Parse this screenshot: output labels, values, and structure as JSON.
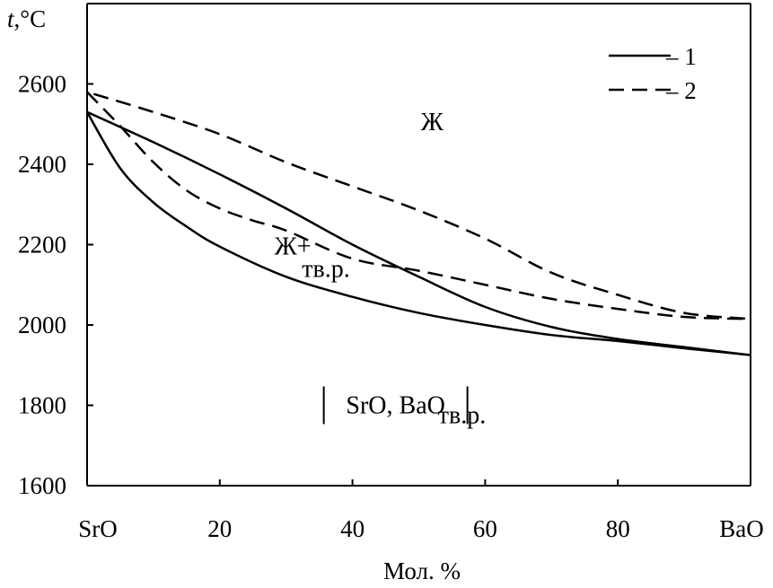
{
  "chart_data": {
    "type": "line",
    "title": "",
    "xlabel": "Мол. %",
    "ylabel_italic": "t",
    "ylabel_rest": ",°C",
    "xlim": [
      0,
      100
    ],
    "ylim": [
      1600,
      2800
    ],
    "x_ticks": [
      {
        "value": 0,
        "label": "SrO"
      },
      {
        "value": 20,
        "label": "20"
      },
      {
        "value": 40,
        "label": "40"
      },
      {
        "value": 60,
        "label": "60"
      },
      {
        "value": 80,
        "label": "80"
      },
      {
        "value": 100,
        "label": "BaO"
      }
    ],
    "y_ticks": [
      {
        "value": 1600,
        "label": "1600"
      },
      {
        "value": 1800,
        "label": "1800"
      },
      {
        "value": 2000,
        "label": "2000"
      },
      {
        "value": 2200,
        "label": "2200"
      },
      {
        "value": 2400,
        "label": "2400"
      },
      {
        "value": 2600,
        "label": "2600"
      }
    ],
    "grid": false,
    "legend_position": "top-right",
    "legend": [
      {
        "label": "– 1",
        "dash": "solid"
      },
      {
        "label": "– 2",
        "dash": "dashed"
      }
    ],
    "series": [
      {
        "legend_index": 0,
        "part": "liquidus",
        "x": [
          0,
          10,
          20,
          30,
          40,
          50,
          60,
          70,
          80,
          90,
          100
        ],
        "y": [
          2530,
          2455,
          2375,
          2290,
          2200,
          2120,
          2045,
          1995,
          1965,
          1945,
          1925
        ]
      },
      {
        "legend_index": 0,
        "part": "solidus",
        "x": [
          0,
          5,
          10,
          15,
          20,
          30,
          40,
          50,
          60,
          70,
          80,
          90,
          100
        ],
        "y": [
          2530,
          2390,
          2305,
          2245,
          2195,
          2120,
          2070,
          2030,
          2000,
          1975,
          1960,
          1942,
          1925
        ]
      },
      {
        "legend_index": 1,
        "part": "liquidus",
        "x": [
          1,
          10,
          20,
          30,
          40,
          50,
          60,
          70,
          80,
          90,
          100
        ],
        "y": [
          2575,
          2530,
          2475,
          2405,
          2345,
          2285,
          2215,
          2130,
          2075,
          2030,
          2015
        ]
      },
      {
        "legend_index": 1,
        "part": "solidus",
        "x": [
          0,
          5,
          10,
          15,
          20,
          25,
          30,
          40,
          50,
          60,
          70,
          80,
          90,
          100
        ],
        "y": [
          2580,
          2495,
          2405,
          2335,
          2290,
          2260,
          2235,
          2165,
          2135,
          2100,
          2065,
          2040,
          2020,
          2015
        ]
      }
    ],
    "annotations": [
      {
        "name": "liquid-region-label",
        "text": "Ж",
        "x": 52,
        "y": 2485
      },
      {
        "name": "liquid-solid-region-label",
        "text": "Ж+",
        "x": 31,
        "y": 2175
      },
      {
        "name": "liquid-solid-region-sub",
        "text": "тв.р.",
        "x": 36,
        "y": 2120
      },
      {
        "name": "solid-region-label",
        "text": "SrO, BaO",
        "x": 46.5,
        "y": 1780
      },
      {
        "name": "solid-region-sub",
        "text": "тв.р.",
        "x": 56.5,
        "y": 1755
      }
    ]
  }
}
